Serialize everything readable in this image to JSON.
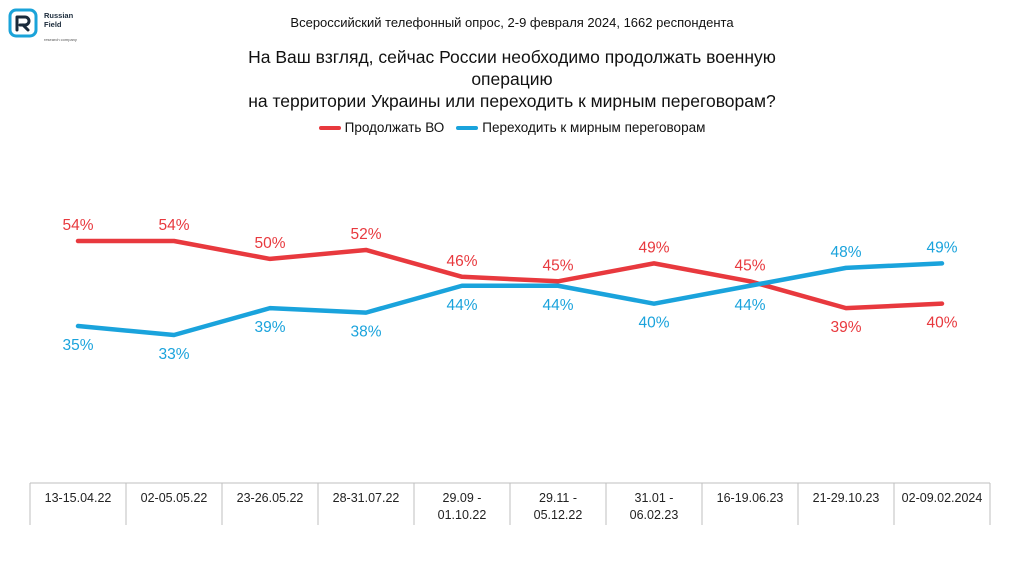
{
  "brand": {
    "line1": "Russian",
    "line2": "Field",
    "tagline": "research company",
    "color": "#1aa3d9"
  },
  "header": {
    "survey": "Всероссийский телефонный опрос, 2-9 февраля 2024, 1662 респондента",
    "question_line1": "На Ваш взгляд, сейчас России необходимо продолжать военную операцию",
    "question_line2": "на территории Украины или переходить к мирным переговорам?"
  },
  "chart_data": {
    "type": "line",
    "legend_position": "top-center",
    "grid": false,
    "ylim": [
      0,
      60
    ],
    "categories": [
      [
        "13-15.04.22"
      ],
      [
        "02-05.05.22"
      ],
      [
        "23-26.05.22"
      ],
      [
        "28-31.07.22"
      ],
      [
        "29.09 -",
        "01.10.22"
      ],
      [
        "29.11 -",
        "05.12.22"
      ],
      [
        "31.01 -",
        "06.02.23"
      ],
      [
        "16-19.06.23"
      ],
      [
        "21-29.10.23"
      ],
      [
        "02-09.02.2024"
      ]
    ],
    "series": [
      {
        "name": "Продолжать ВО",
        "color": "#e8393e",
        "values": [
          54,
          54,
          50,
          52,
          46,
          45,
          49,
          45,
          39,
          40
        ],
        "labels": [
          "54%",
          "54%",
          "50%",
          "52%",
          "46%",
          "45%",
          "49%",
          "45%",
          "39%",
          "40%"
        ]
      },
      {
        "name": "Переходить к мирным переговорам",
        "color": "#1aa3dc",
        "values": [
          35,
          33,
          39,
          38,
          44,
          44,
          40,
          44,
          48,
          49
        ],
        "labels": [
          "35%",
          "33%",
          "39%",
          "38%",
          "44%",
          "44%",
          "40%",
          "44%",
          "48%",
          "49%"
        ]
      }
    ]
  }
}
